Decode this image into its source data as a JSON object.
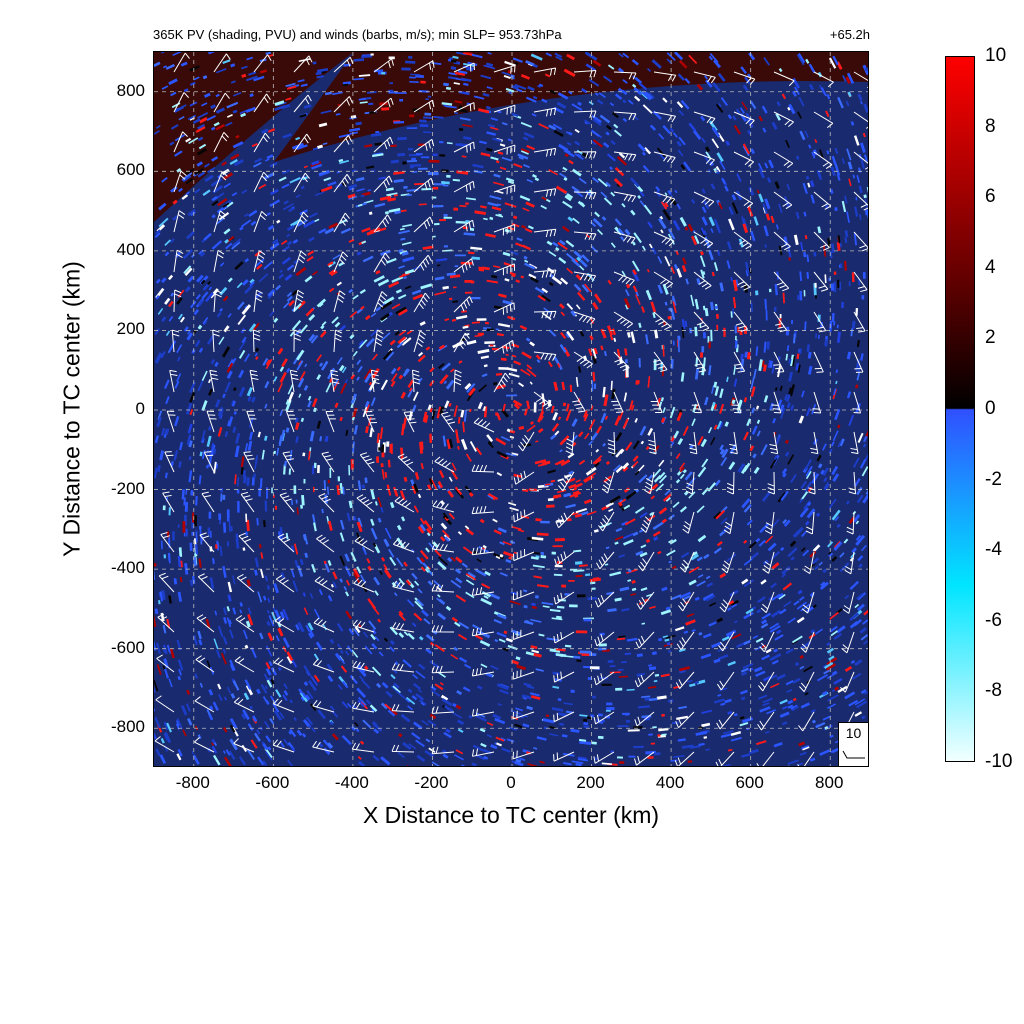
{
  "header": {
    "title_left": "365K PV (shading, PVU) and winds (barbs, m/s); min SLP= 953.73hPa",
    "title_right": "+65.2h"
  },
  "chart_data": {
    "type": "heatmap",
    "title": "365K PV (shading, PVU) and winds (barbs, m/s); min SLP= 953.73hPa",
    "forecast_time": "+65.2h",
    "xlabel": "X Distance to TC center (km)",
    "ylabel": "Y Distance to TC center (km)",
    "xlim": [
      -900,
      900
    ],
    "ylim": [
      -900,
      900
    ],
    "x_ticks": [
      -800,
      -600,
      -400,
      -200,
      0,
      200,
      400,
      600,
      800
    ],
    "y_ticks": [
      -800,
      -600,
      -400,
      -200,
      0,
      200,
      400,
      600,
      800
    ],
    "x_tick_labels": [
      "-800",
      "-600",
      "-400",
      "-200",
      "0",
      "200",
      "400",
      "600",
      "800"
    ],
    "y_tick_labels": [
      "800",
      "600",
      "400",
      "200",
      "0",
      "-200",
      "-400",
      "-600",
      "-800"
    ],
    "grid": true,
    "colorbar": {
      "min": -10,
      "max": 10,
      "ticks": [
        10,
        8,
        6,
        4,
        2,
        0,
        -2,
        -4,
        -6,
        -8,
        -10
      ],
      "tick_labels": [
        "10",
        "8",
        "6",
        "4",
        "2",
        "0",
        "-2",
        "-4",
        "-6",
        "-8",
        "-10"
      ],
      "colors": {
        "max": "#ff0000",
        "mid_positive": "#6a0000",
        "zero_positive": "#000000",
        "zero_negative": "#3050ff",
        "mid_negative": "#00e5ff",
        "min": "#f2ffff"
      }
    },
    "reference_vector": {
      "value": "10",
      "units": "m/s"
    },
    "min_slp_hpa": 953.73
  }
}
